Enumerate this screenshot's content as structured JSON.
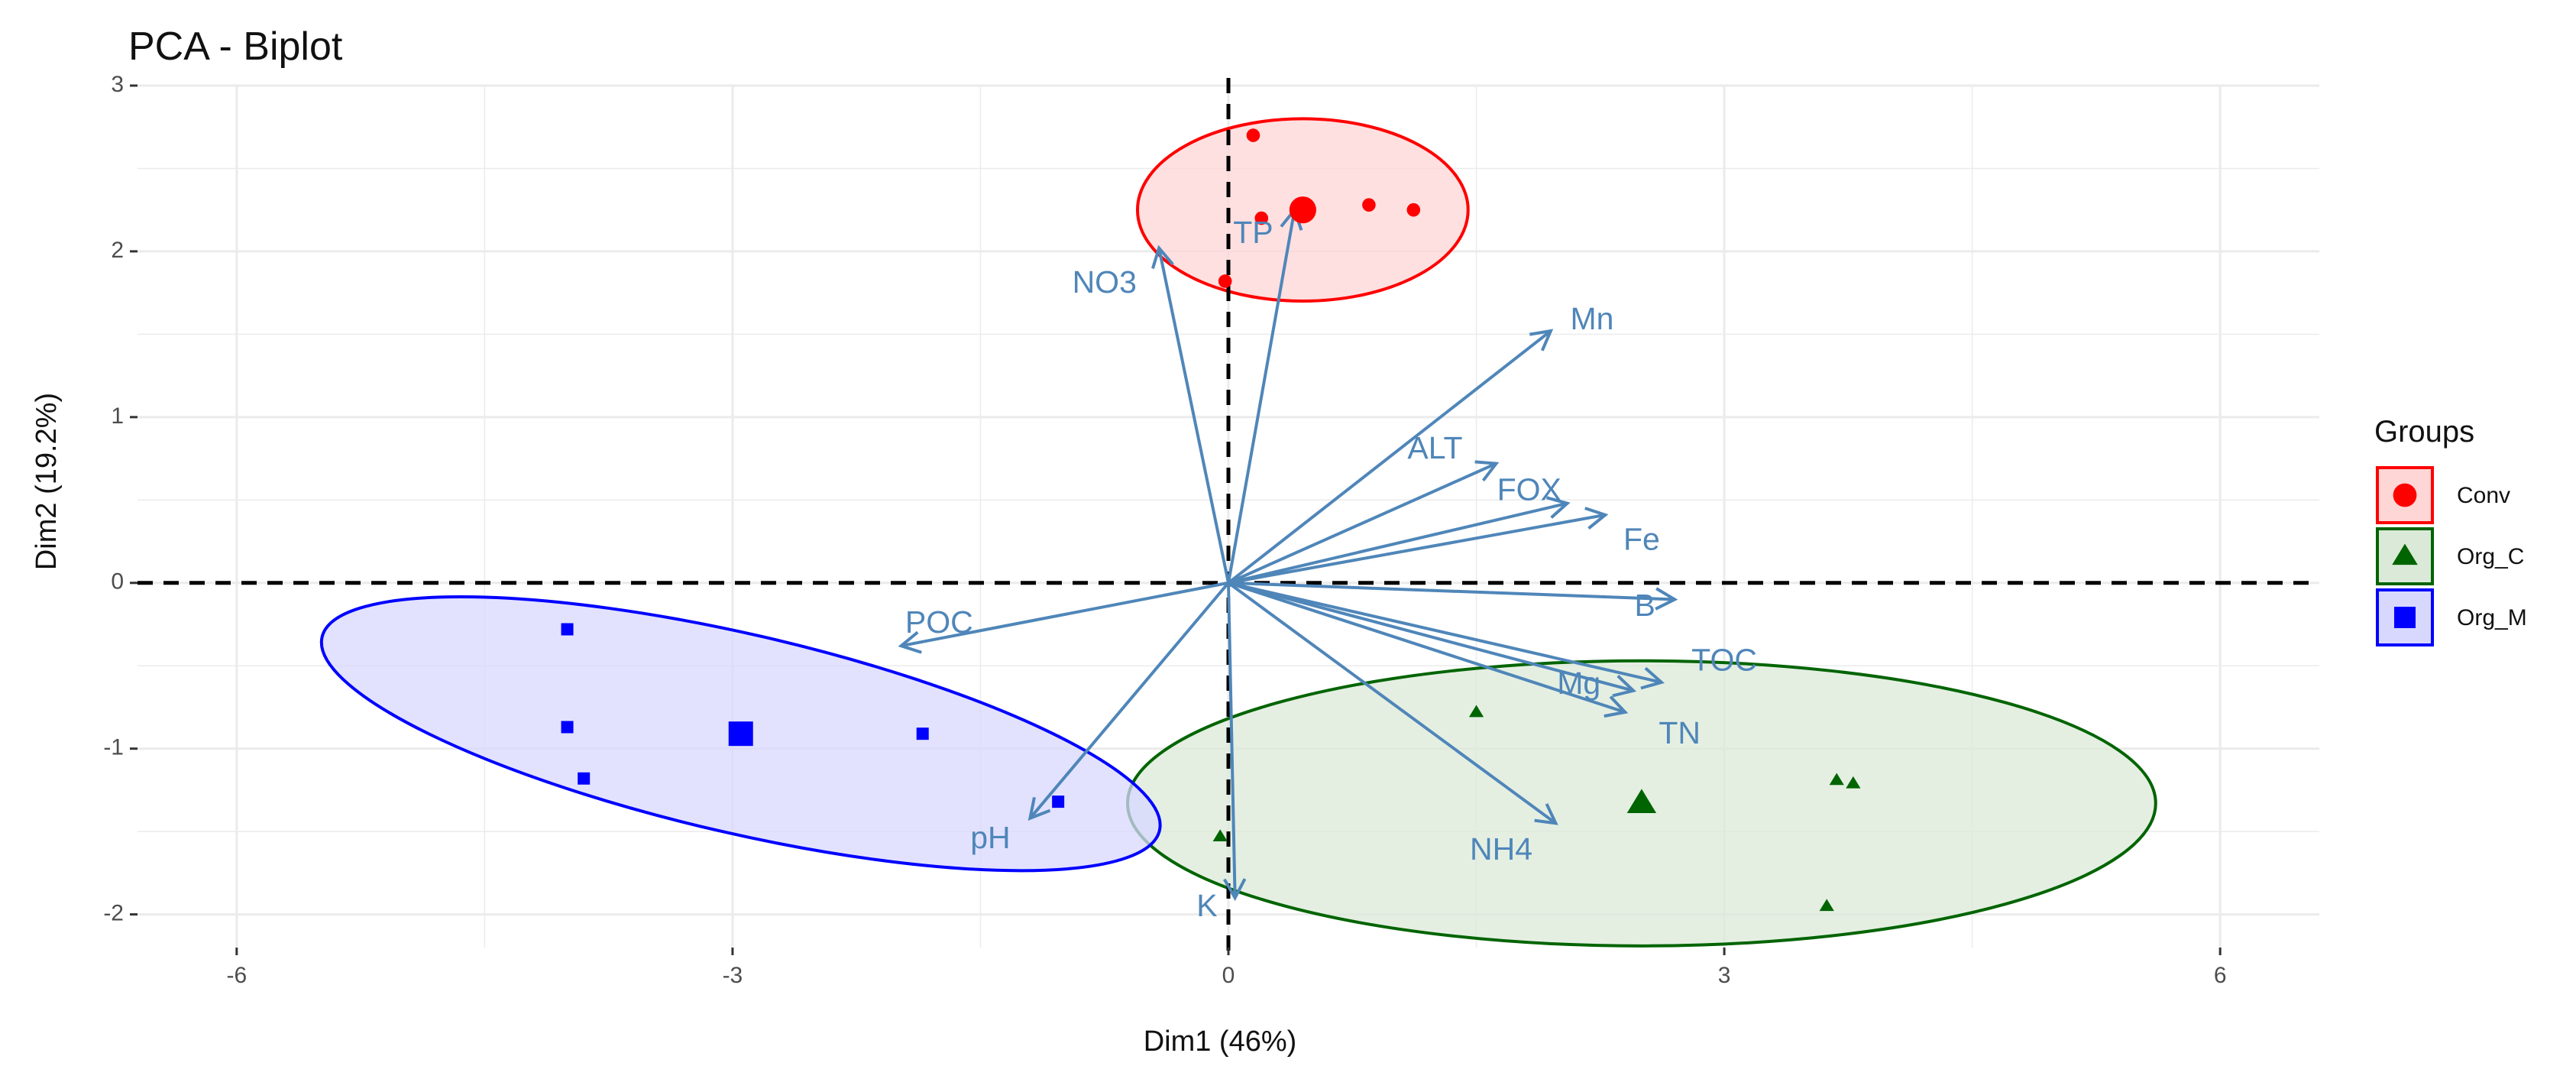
{
  "chart_data": {
    "type": "scatter",
    "title": "PCA - Biplot",
    "xlabel": "Dim1 (46%)",
    "ylabel": "Dim2 (19.2%)",
    "xlim": [
      -6,
      6
    ],
    "ylim": [
      -2,
      3
    ],
    "x_ticks": [
      -6,
      -3,
      0,
      3,
      6
    ],
    "x_tick_labels": [
      "-6",
      "-3",
      "0",
      "3",
      "6"
    ],
    "y_ticks": [
      -2,
      -1,
      0,
      1,
      2,
      3
    ],
    "y_tick_labels": [
      "-2",
      "-1",
      "0",
      "1",
      "2",
      "3"
    ],
    "grid": true,
    "reference_lines": {
      "x": 0,
      "y": 0,
      "style": "dashed"
    },
    "legend": {
      "title": "Groups",
      "position": "right",
      "entries": [
        {
          "label": "Conv",
          "color": "#ff0000",
          "fill": "#ffd6d6",
          "shape": "circle"
        },
        {
          "label": "Org_C",
          "color": "#006400",
          "fill": "#dbe9d8",
          "shape": "triangle"
        },
        {
          "label": "Org_M",
          "color": "#0000ff",
          "fill": "#d8d8ff",
          "shape": "square"
        }
      ]
    },
    "groups": [
      {
        "name": "Conv",
        "color": "#ff0000",
        "fill": "#ffd6d6",
        "shape": "circle",
        "points": [
          {
            "x": 0.15,
            "y": 2.7
          },
          {
            "x": 0.85,
            "y": 2.28
          },
          {
            "x": 1.12,
            "y": 2.25
          },
          {
            "x": 0.2,
            "y": 2.2
          },
          {
            "x": -0.02,
            "y": 1.82
          }
        ],
        "centroid": {
          "x": 0.45,
          "y": 2.25
        },
        "ellipse": {
          "cx": 0.45,
          "cy": 2.25,
          "rx": 1.0,
          "ry": 0.55,
          "angle_deg": 0
        }
      },
      {
        "name": "Org_C",
        "color": "#006400",
        "fill": "#dbe9d8",
        "shape": "triangle",
        "points": [
          {
            "x": 1.5,
            "y": -0.78
          },
          {
            "x": 3.68,
            "y": -1.19
          },
          {
            "x": 3.78,
            "y": -1.21
          },
          {
            "x": 3.62,
            "y": -1.95
          },
          {
            "x": -0.05,
            "y": -1.53
          }
        ],
        "centroid": {
          "x": 2.5,
          "y": -1.33
        },
        "ellipse": {
          "cx": 2.5,
          "cy": -1.33,
          "rx": 3.11,
          "ry": 0.86,
          "angle_deg": 0
        }
      },
      {
        "name": "Org_M",
        "color": "#0000ff",
        "fill": "#d8d8ff",
        "shape": "square",
        "points": [
          {
            "x": -4.0,
            "y": -0.28
          },
          {
            "x": -4.0,
            "y": -0.87
          },
          {
            "x": -3.9,
            "y": -1.18
          },
          {
            "x": -1.85,
            "y": -0.91
          },
          {
            "x": -1.03,
            "y": -1.32
          }
        ],
        "centroid": {
          "x": -2.95,
          "y": -0.91
        },
        "ellipse": {
          "cx": -2.95,
          "cy": -0.91,
          "rx": 2.6,
          "ry": 0.6,
          "angle_deg": -13
        }
      }
    ],
    "variables": [
      {
        "name": "TP",
        "x": 0.4,
        "y": 2.25,
        "label_x": 0.15,
        "label_y": 2.1
      },
      {
        "name": "NO3",
        "x": -0.42,
        "y": 2.02,
        "label_x": -0.75,
        "label_y": 1.8
      },
      {
        "name": "Mn",
        "x": 1.95,
        "y": 1.52,
        "label_x": 2.2,
        "label_y": 1.58
      },
      {
        "name": "ALT",
        "x": 1.62,
        "y": 0.72,
        "label_x": 1.25,
        "label_y": 0.8
      },
      {
        "name": "FOX",
        "x": 2.05,
        "y": 0.48,
        "label_x": 1.82,
        "label_y": 0.55
      },
      {
        "name": "Fe",
        "x": 2.28,
        "y": 0.41,
        "label_x": 2.5,
        "label_y": 0.25
      },
      {
        "name": "B",
        "x": 2.7,
        "y": -0.1,
        "label_x": 2.52,
        "label_y": -0.15
      },
      {
        "name": "TOC",
        "x": 2.62,
        "y": -0.6,
        "label_x": 3.0,
        "label_y": -0.48
      },
      {
        "name": "Mg",
        "x": 2.45,
        "y": -0.65,
        "label_x": 2.12,
        "label_y": -0.62
      },
      {
        "name": "TN",
        "x": 2.4,
        "y": -0.78,
        "label_x": 2.73,
        "label_y": -0.92
      },
      {
        "name": "NH4",
        "x": 1.98,
        "y": -1.45,
        "label_x": 1.65,
        "label_y": -1.62
      },
      {
        "name": "POC",
        "x": -1.98,
        "y": -0.38,
        "label_x": -1.75,
        "label_y": -0.25
      },
      {
        "name": "pH",
        "x": -1.2,
        "y": -1.42,
        "label_x": -1.44,
        "label_y": -1.55
      },
      {
        "name": "K",
        "x": 0.04,
        "y": -1.9,
        "label_x": -0.13,
        "label_y": -1.96
      }
    ]
  }
}
